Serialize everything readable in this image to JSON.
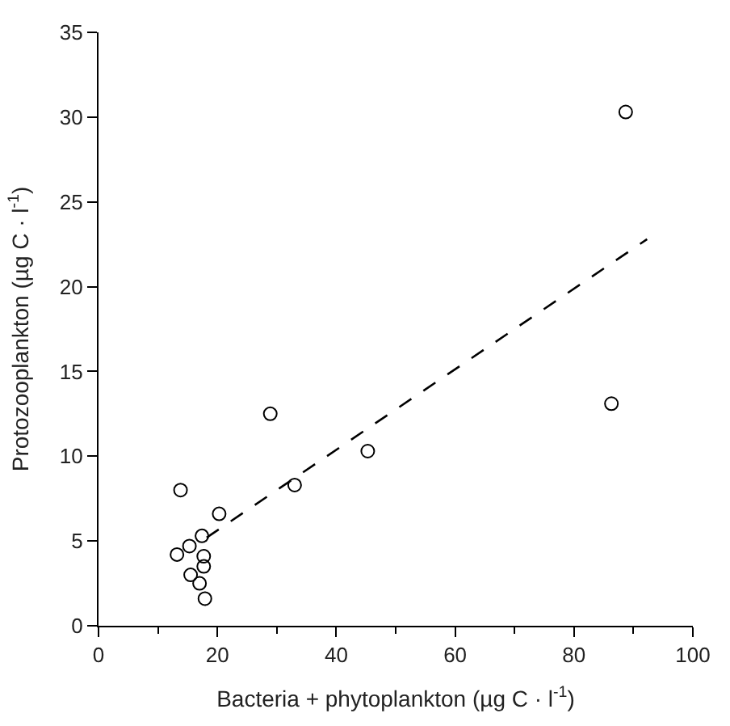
{
  "chart_data": {
    "type": "scatter",
    "xlabel": "Bacteria + phytoplankton (µg C · l$^{-1}$)",
    "ylabel": "Protozooplankton (µg C · l$^{-1}$)",
    "xlim": [
      0,
      100
    ],
    "xticks": [
      0,
      20,
      40,
      60,
      80,
      100
    ],
    "ylim": [
      0,
      35
    ],
    "yticks": [
      0,
      5,
      10,
      15,
      20,
      25,
      30,
      35
    ],
    "series": [
      {
        "marker": "circle",
        "color": "#000000",
        "x": [
          28.9,
          13.8,
          20.3,
          17.4,
          15.3,
          13.2,
          17.7,
          17.7,
          15.5,
          17.0,
          17.9,
          33.0,
          45.3,
          86.3,
          88.7
        ],
        "values": [
          12.5,
          8.0,
          6.6,
          5.3,
          4.7,
          4.2,
          4.1,
          3.5,
          3.0,
          2.5,
          1.6,
          8.3,
          10.3,
          13.1,
          30.3
        ]
      },
      {
        "type": "line",
        "marker": "none",
        "line_style": "dashed",
        "color": "#000000",
        "x": [
          18.2,
          92.3
        ],
        "values": [
          5.2,
          22.8
        ]
      }
    ]
  }
}
